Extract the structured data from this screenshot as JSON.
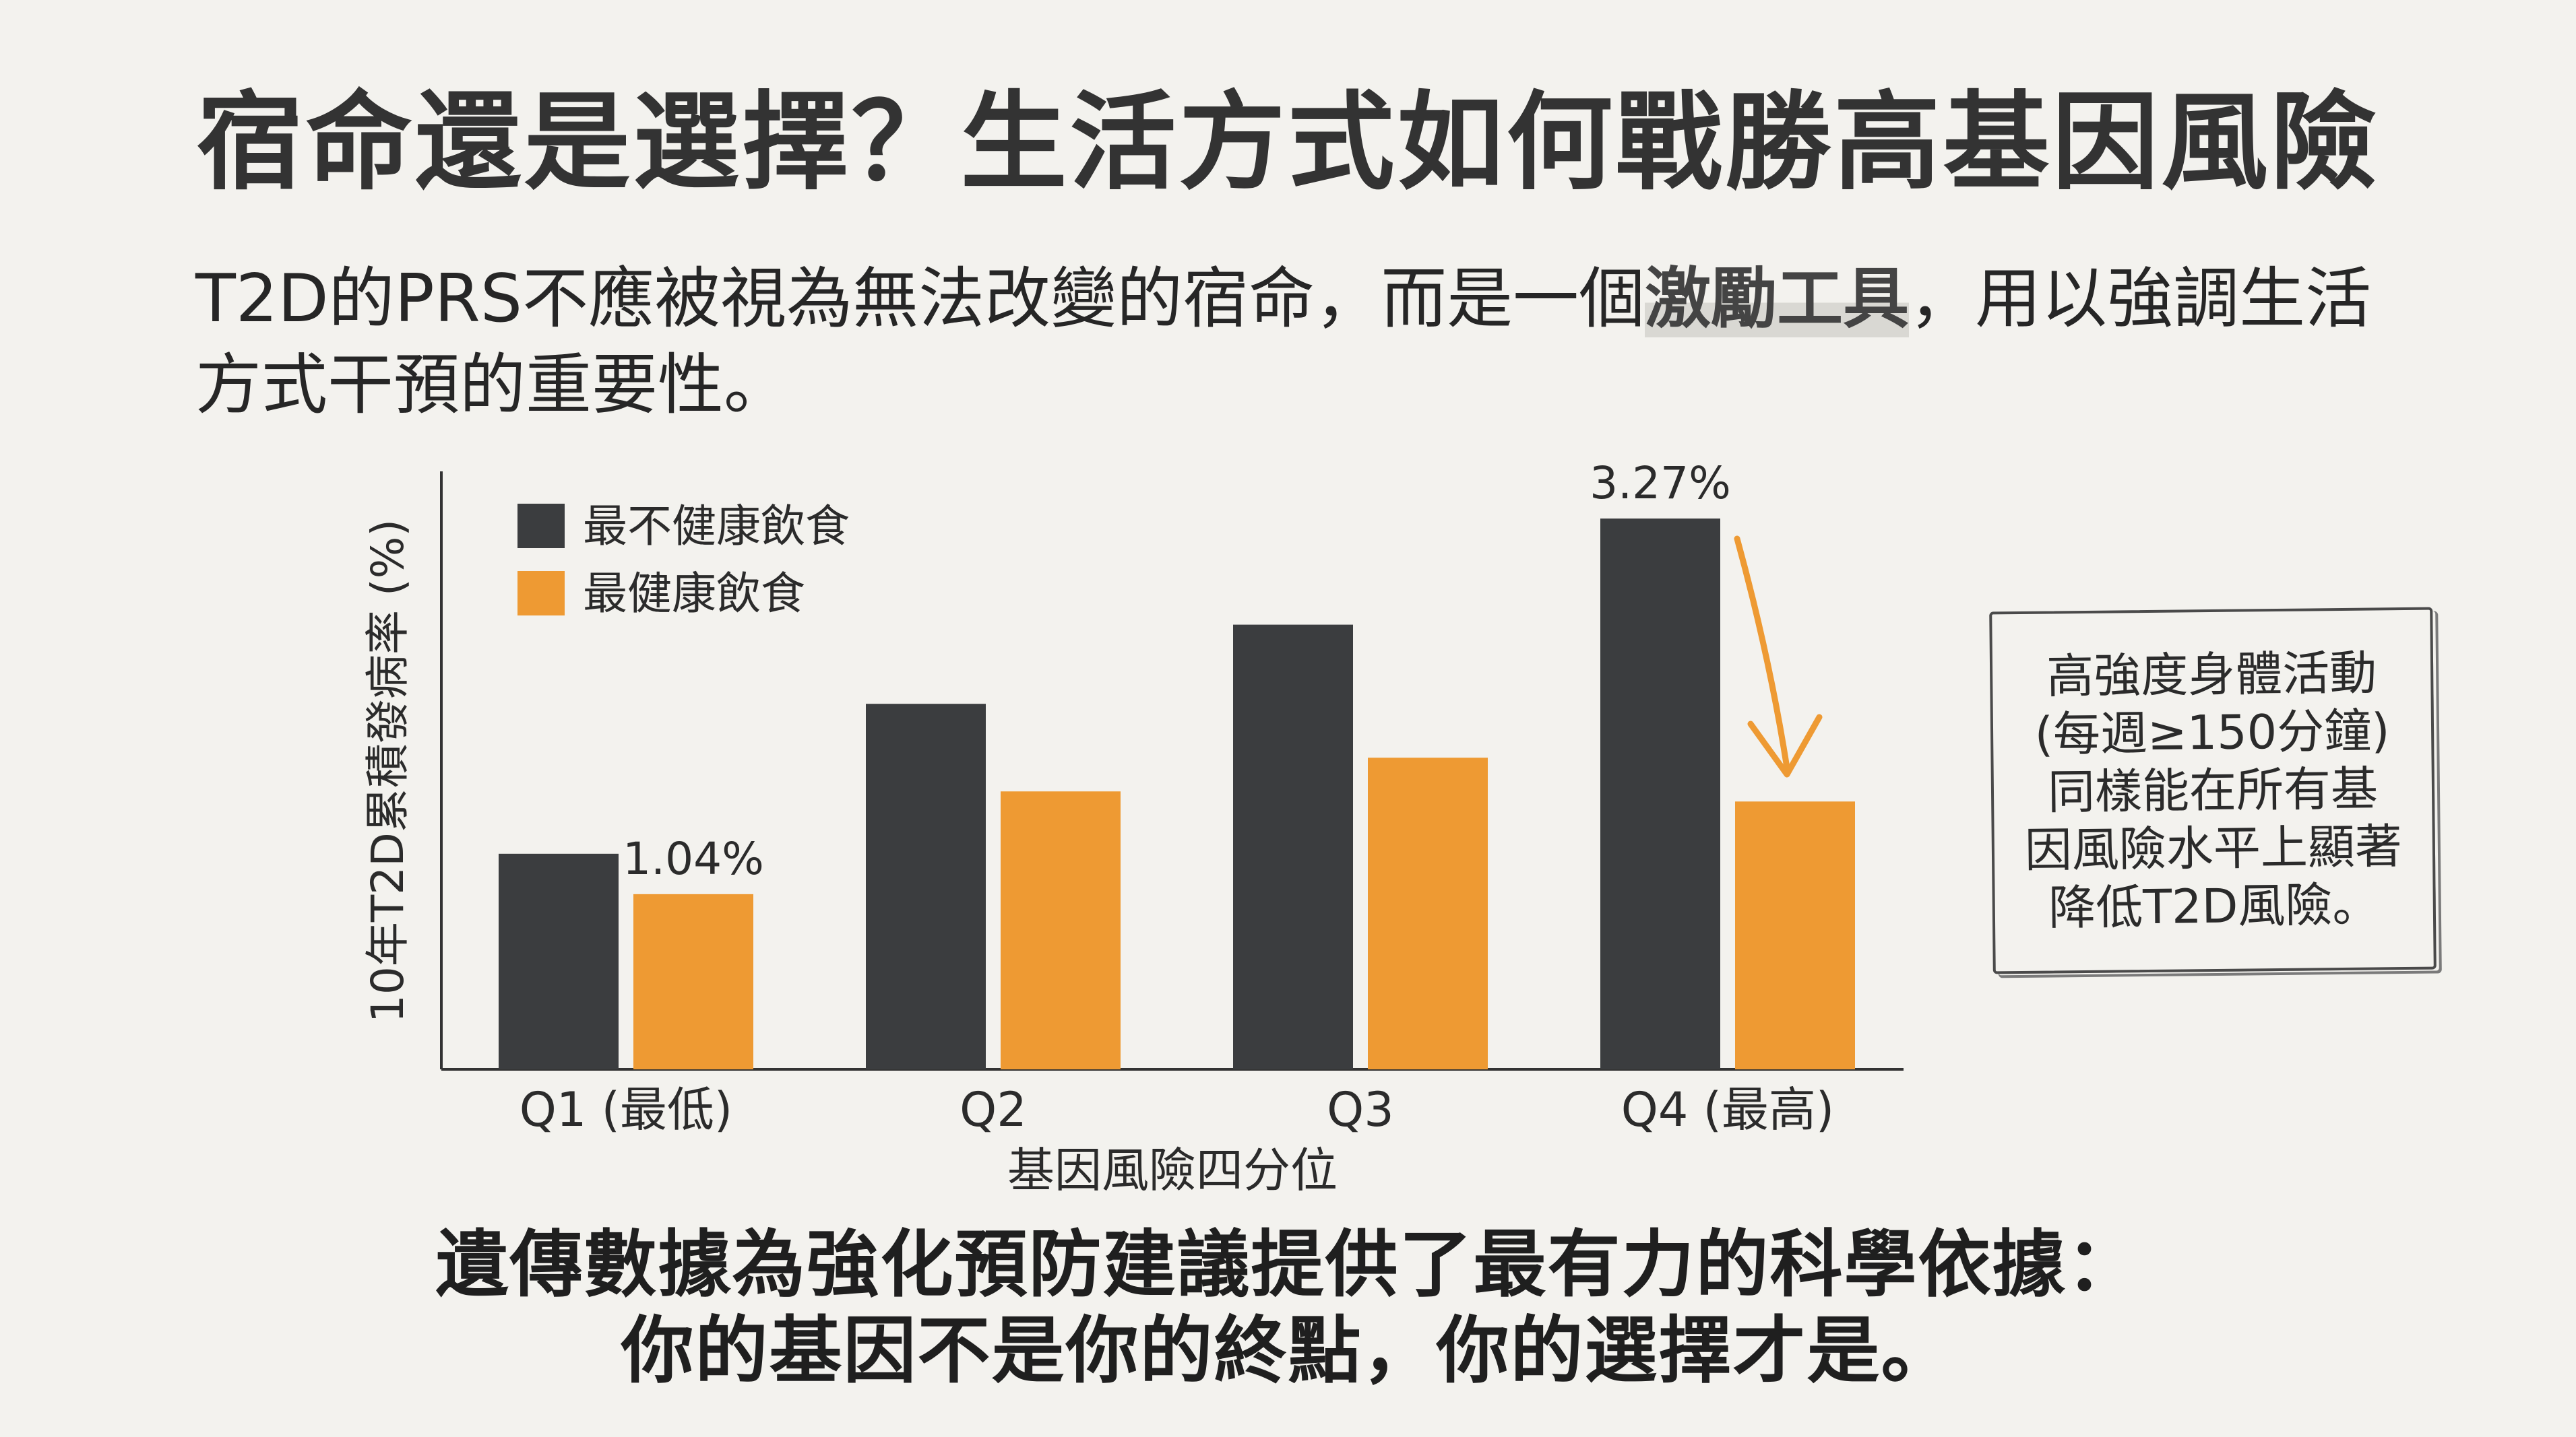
{
  "slide": {
    "title": "宿命還是選擇？生活方式如何戰勝高基因風險",
    "intro_before": "T2D的PRS不應被視為無法改變的宿命，而是一個",
    "intro_highlight": "激勵工具",
    "intro_after": "，用以強調生活方式干預的重要性。",
    "note": "高強度身體活動\n(每週≥150分鐘)\n同樣能在所有基\n因風險水平上顯著\n降低T2D風險。",
    "conclusion_line1": "遺傳數據為強化預防建議提供了最有力的科學依據：",
    "conclusion_line2": "你的基因不是你的終點，你的選擇才是。"
  },
  "colors": {
    "dark_series": "#3b3d3f",
    "orange_series": "#ee9a33",
    "arrow": "#ee9a33",
    "axis": "#333333"
  },
  "chart_data": {
    "type": "bar",
    "xlabel": "基因風險四分位",
    "ylabel": "10年T2D累積發病率 (%)",
    "categories": [
      "Q1 (最低)",
      "Q2",
      "Q3",
      "Q4 (最高)"
    ],
    "ylim": [
      0,
      3.55
    ],
    "grid": false,
    "legend_position": "top-left",
    "series": [
      {
        "name": "最不健康飲食",
        "color": "#3b3d3f",
        "values": [
          1.28,
          2.17,
          2.64,
          3.27
        ]
      },
      {
        "name": "最健康飲食",
        "color": "#ee9a33",
        "values": [
          1.04,
          1.65,
          1.85,
          1.59
        ]
      }
    ],
    "annotations": [
      {
        "series": 0,
        "index": 3,
        "text": "3.27%"
      },
      {
        "series": 1,
        "index": 0,
        "text": "1.04%"
      }
    ]
  }
}
